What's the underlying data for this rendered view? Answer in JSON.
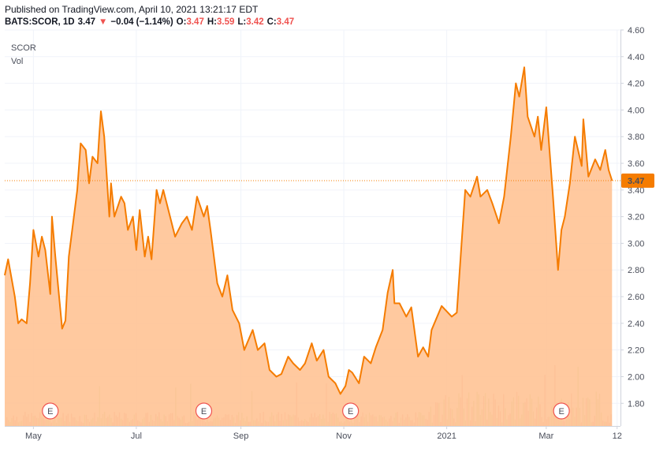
{
  "header": {
    "published": "Published on TradingView.com, April 10, 2021 13:21:17 EDT",
    "symbol": "BATS:SCOR, 1D",
    "last": "3.47",
    "change": "−0.04 (−1.14%)",
    "o_label": "O:",
    "o_value": "3.47",
    "h_label": "H:",
    "h_value": "3.59",
    "l_label": "L:",
    "l_value": "3.42",
    "c_label": "C:",
    "c_value": "3.47",
    "down_arrow": "▼"
  },
  "legend": {
    "symbol": "SCOR",
    "volume_label": "Vol"
  },
  "price_label": "3.47",
  "earnings_marker": "E",
  "colors": {
    "line": "#f57c00",
    "fill": "#ffbf8e",
    "price_tag": "#f57c00",
    "vol_up": "#d9e7c4",
    "vol_down": "#f5c6c6",
    "marker": "#ef5350"
  },
  "chart_data": {
    "type": "area",
    "title": "SCOR",
    "y_axis": {
      "ticks": [
        "4.60",
        "4.40",
        "4.20",
        "4.00",
        "3.80",
        "3.60",
        "3.40",
        "3.20",
        "3.00",
        "2.80",
        "2.60",
        "2.40",
        "2.20",
        "2.00",
        "1.80"
      ],
      "range": [
        1.63,
        4.6
      ]
    },
    "x_axis": {
      "ticks": [
        "May",
        "Jul",
        "Sep",
        "Nov",
        "2021",
        "Mar",
        "12"
      ],
      "range": [
        "2020-04-14",
        "2021-04-14"
      ]
    },
    "series": [
      {
        "values": [
          [
            "2020-04-14",
            2.76
          ],
          [
            "2020-04-16",
            2.88
          ],
          [
            "2020-04-20",
            2.6
          ],
          [
            "2020-04-22",
            2.4
          ],
          [
            "2020-04-24",
            2.43
          ],
          [
            "2020-04-27",
            2.4
          ],
          [
            "2020-04-29",
            2.7
          ],
          [
            "2020-05-01",
            3.1
          ],
          [
            "2020-05-04",
            2.9
          ],
          [
            "2020-05-06",
            3.05
          ],
          [
            "2020-05-08",
            2.95
          ],
          [
            "2020-05-11",
            2.62
          ],
          [
            "2020-05-12",
            3.2
          ],
          [
            "2020-05-14",
            2.9
          ],
          [
            "2020-05-18",
            2.36
          ],
          [
            "2020-05-20",
            2.42
          ],
          [
            "2020-05-22",
            2.9
          ],
          [
            "2020-05-27",
            3.4
          ],
          [
            "2020-05-29",
            3.75
          ],
          [
            "2020-06-01",
            3.7
          ],
          [
            "2020-06-03",
            3.45
          ],
          [
            "2020-06-05",
            3.65
          ],
          [
            "2020-06-08",
            3.6
          ],
          [
            "2020-06-09",
            3.8
          ],
          [
            "2020-06-10",
            3.99
          ],
          [
            "2020-06-12",
            3.8
          ],
          [
            "2020-06-15",
            3.2
          ],
          [
            "2020-06-16",
            3.45
          ],
          [
            "2020-06-18",
            3.2
          ],
          [
            "2020-06-22",
            3.35
          ],
          [
            "2020-06-24",
            3.3
          ],
          [
            "2020-06-26",
            3.1
          ],
          [
            "2020-06-29",
            3.2
          ],
          [
            "2020-07-01",
            2.95
          ],
          [
            "2020-07-03",
            3.25
          ],
          [
            "2020-07-06",
            2.9
          ],
          [
            "2020-07-08",
            3.05
          ],
          [
            "2020-07-10",
            2.88
          ],
          [
            "2020-07-13",
            3.4
          ],
          [
            "2020-07-15",
            3.3
          ],
          [
            "2020-07-17",
            3.4
          ],
          [
            "2020-07-21",
            3.2
          ],
          [
            "2020-07-24",
            3.05
          ],
          [
            "2020-07-28",
            3.15
          ],
          [
            "2020-07-31",
            3.2
          ],
          [
            "2020-08-03",
            3.1
          ],
          [
            "2020-08-06",
            3.35
          ],
          [
            "2020-08-10",
            3.2
          ],
          [
            "2020-08-12",
            3.28
          ],
          [
            "2020-08-14",
            3.1
          ],
          [
            "2020-08-18",
            2.7
          ],
          [
            "2020-08-21",
            2.6
          ],
          [
            "2020-08-24",
            2.76
          ],
          [
            "2020-08-27",
            2.5
          ],
          [
            "2020-08-31",
            2.4
          ],
          [
            "2020-09-03",
            2.2
          ],
          [
            "2020-09-08",
            2.35
          ],
          [
            "2020-09-11",
            2.2
          ],
          [
            "2020-09-15",
            2.25
          ],
          [
            "2020-09-18",
            2.05
          ],
          [
            "2020-09-22",
            2.0
          ],
          [
            "2020-09-25",
            2.02
          ],
          [
            "2020-09-29",
            2.15
          ],
          [
            "2020-10-02",
            2.1
          ],
          [
            "2020-10-06",
            2.05
          ],
          [
            "2020-10-09",
            2.1
          ],
          [
            "2020-10-13",
            2.25
          ],
          [
            "2020-10-16",
            2.12
          ],
          [
            "2020-10-20",
            2.2
          ],
          [
            "2020-10-23",
            2.0
          ],
          [
            "2020-10-27",
            1.95
          ],
          [
            "2020-10-30",
            1.87
          ],
          [
            "2020-11-02",
            1.93
          ],
          [
            "2020-11-04",
            2.05
          ],
          [
            "2020-11-06",
            2.03
          ],
          [
            "2020-11-10",
            1.95
          ],
          [
            "2020-11-13",
            2.15
          ],
          [
            "2020-11-17",
            2.1
          ],
          [
            "2020-11-20",
            2.22
          ],
          [
            "2020-11-24",
            2.35
          ],
          [
            "2020-11-27",
            2.63
          ],
          [
            "2020-11-30",
            2.8
          ],
          [
            "2020-12-01",
            2.55
          ],
          [
            "2020-12-04",
            2.55
          ],
          [
            "2020-12-08",
            2.45
          ],
          [
            "2020-12-11",
            2.52
          ],
          [
            "2020-12-15",
            2.15
          ],
          [
            "2020-12-18",
            2.22
          ],
          [
            "2020-12-21",
            2.15
          ],
          [
            "2020-12-23",
            2.35
          ],
          [
            "2020-12-29",
            2.53
          ],
          [
            "2021-01-04",
            2.45
          ],
          [
            "2021-01-07",
            2.48
          ],
          [
            "2021-01-12",
            3.4
          ],
          [
            "2021-01-15",
            3.35
          ],
          [
            "2021-01-19",
            3.5
          ],
          [
            "2021-01-21",
            3.35
          ],
          [
            "2021-01-25",
            3.4
          ],
          [
            "2021-01-28",
            3.3
          ],
          [
            "2021-02-01",
            3.15
          ],
          [
            "2021-02-04",
            3.35
          ],
          [
            "2021-02-08",
            3.8
          ],
          [
            "2021-02-11",
            4.2
          ],
          [
            "2021-02-13",
            4.1
          ],
          [
            "2021-02-16",
            4.32
          ],
          [
            "2021-02-18",
            3.95
          ],
          [
            "2021-02-22",
            3.8
          ],
          [
            "2021-02-24",
            3.95
          ],
          [
            "2021-02-26",
            3.7
          ],
          [
            "2021-03-01",
            4.02
          ],
          [
            "2021-03-05",
            3.35
          ],
          [
            "2021-03-08",
            2.8
          ],
          [
            "2021-03-10",
            3.1
          ],
          [
            "2021-03-12",
            3.2
          ],
          [
            "2021-03-15",
            3.45
          ],
          [
            "2021-03-18",
            3.8
          ],
          [
            "2021-03-22",
            3.58
          ],
          [
            "2021-03-23",
            3.93
          ],
          [
            "2021-03-26",
            3.5
          ],
          [
            "2021-03-30",
            3.63
          ],
          [
            "2021-04-02",
            3.55
          ],
          [
            "2021-04-05",
            3.7
          ],
          [
            "2021-04-07",
            3.55
          ],
          [
            "2021-04-09",
            3.47
          ]
        ]
      }
    ],
    "earnings_events": [
      "2020-05-11",
      "2020-08-10",
      "2020-11-05",
      "2021-03-10"
    ],
    "last_price": 3.47,
    "grid": true
  }
}
